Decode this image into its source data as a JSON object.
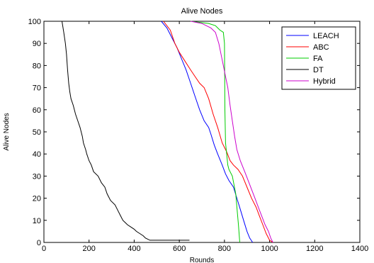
{
  "chart_data": {
    "type": "line",
    "title": "Alive Nodes",
    "xlabel": "Rounds",
    "ylabel": "Alive Nodes",
    "xlim": [
      0,
      1400
    ],
    "ylim": [
      0,
      100
    ],
    "xticks": [
      0,
      200,
      400,
      600,
      800,
      1000,
      1200,
      1400
    ],
    "yticks": [
      0,
      10,
      20,
      30,
      40,
      50,
      60,
      70,
      80,
      90,
      100
    ],
    "grid": false,
    "legend_position": "top-right",
    "series": [
      {
        "name": "LEACH",
        "color": "#0000ff",
        "points": [
          [
            520,
            100
          ],
          [
            545,
            97
          ],
          [
            570,
            92
          ],
          [
            590,
            88
          ],
          [
            610,
            83
          ],
          [
            630,
            78
          ],
          [
            650,
            72
          ],
          [
            670,
            66
          ],
          [
            690,
            60
          ],
          [
            710,
            55
          ],
          [
            730,
            52
          ],
          [
            740,
            49
          ],
          [
            755,
            44
          ],
          [
            770,
            40
          ],
          [
            790,
            35
          ],
          [
            805,
            31
          ],
          [
            820,
            28
          ],
          [
            840,
            25
          ],
          [
            855,
            20
          ],
          [
            870,
            15
          ],
          [
            885,
            10
          ],
          [
            900,
            5
          ],
          [
            912,
            2
          ],
          [
            925,
            0
          ]
        ]
      },
      {
        "name": "ABC",
        "color": "#ff0000",
        "points": [
          [
            530,
            100
          ],
          [
            560,
            96
          ],
          [
            580,
            90
          ],
          [
            600,
            86
          ],
          [
            625,
            82
          ],
          [
            650,
            78
          ],
          [
            670,
            75
          ],
          [
            690,
            72
          ],
          [
            710,
            70
          ],
          [
            730,
            65
          ],
          [
            750,
            58
          ],
          [
            770,
            52
          ],
          [
            790,
            45
          ],
          [
            810,
            41
          ],
          [
            825,
            37
          ],
          [
            840,
            35
          ],
          [
            860,
            33
          ],
          [
            880,
            30
          ],
          [
            900,
            25
          ],
          [
            920,
            20
          ],
          [
            940,
            16
          ],
          [
            955,
            12
          ],
          [
            970,
            8
          ],
          [
            985,
            4
          ],
          [
            1000,
            1
          ],
          [
            1015,
            0
          ]
        ]
      },
      {
        "name": "FA",
        "color": "#00cc00",
        "points": [
          [
            650,
            100
          ],
          [
            730,
            99
          ],
          [
            760,
            98
          ],
          [
            780,
            96
          ],
          [
            795,
            95
          ],
          [
            800,
            90
          ],
          [
            802,
            60
          ],
          [
            805,
            45
          ],
          [
            810,
            40
          ],
          [
            815,
            35
          ],
          [
            820,
            33
          ],
          [
            835,
            30
          ],
          [
            850,
            22
          ],
          [
            862,
            8
          ],
          [
            868,
            0
          ]
        ]
      },
      {
        "name": "DT",
        "color": "#000000",
        "points": [
          [
            80,
            100
          ],
          [
            88,
            95
          ],
          [
            95,
            90
          ],
          [
            100,
            85
          ],
          [
            105,
            78
          ],
          [
            110,
            72
          ],
          [
            115,
            68
          ],
          [
            120,
            65
          ],
          [
            130,
            62
          ],
          [
            140,
            58
          ],
          [
            150,
            55
          ],
          [
            160,
            52
          ],
          [
            170,
            48
          ],
          [
            175,
            45
          ],
          [
            185,
            42
          ],
          [
            190,
            40
          ],
          [
            200,
            37
          ],
          [
            210,
            35
          ],
          [
            220,
            32
          ],
          [
            240,
            30
          ],
          [
            255,
            27
          ],
          [
            270,
            25
          ],
          [
            280,
            22
          ],
          [
            295,
            19
          ],
          [
            315,
            17
          ],
          [
            330,
            14
          ],
          [
            340,
            12
          ],
          [
            350,
            10
          ],
          [
            360,
            9
          ],
          [
            370,
            8
          ],
          [
            385,
            7
          ],
          [
            400,
            6
          ],
          [
            410,
            5
          ],
          [
            425,
            4
          ],
          [
            440,
            3
          ],
          [
            450,
            2
          ],
          [
            470,
            1
          ],
          [
            490,
            1
          ],
          [
            560,
            1
          ],
          [
            645,
            1
          ]
        ]
      },
      {
        "name": "Hybrid",
        "color": "#cc00cc",
        "points": [
          [
            650,
            100
          ],
          [
            700,
            99
          ],
          [
            740,
            97
          ],
          [
            760,
            95
          ],
          [
            775,
            90
          ],
          [
            785,
            85
          ],
          [
            795,
            80
          ],
          [
            805,
            75
          ],
          [
            815,
            70
          ],
          [
            825,
            62
          ],
          [
            835,
            55
          ],
          [
            845,
            48
          ],
          [
            855,
            42
          ],
          [
            870,
            37
          ],
          [
            890,
            32
          ],
          [
            905,
            28
          ],
          [
            920,
            24
          ],
          [
            935,
            20
          ],
          [
            950,
            16
          ],
          [
            965,
            12
          ],
          [
            980,
            8
          ],
          [
            995,
            5
          ],
          [
            1005,
            2
          ],
          [
            1015,
            0
          ]
        ]
      }
    ]
  }
}
